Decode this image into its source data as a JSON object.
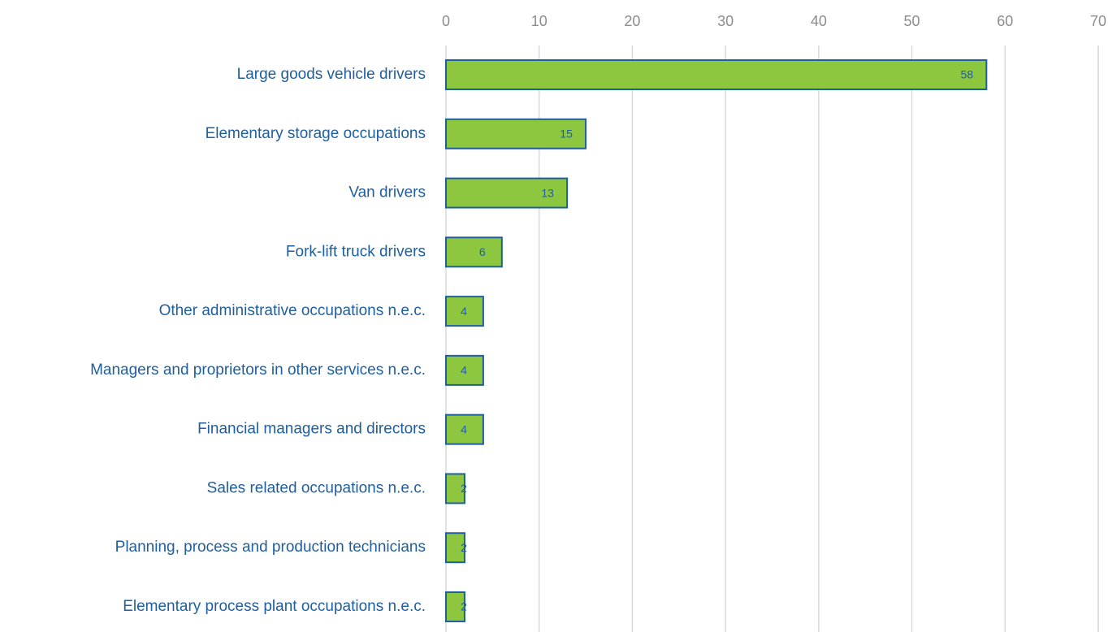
{
  "chart_data": {
    "type": "bar",
    "orientation": "horizontal",
    "categories": [
      "Large goods vehicle drivers",
      "Elementary storage occupations",
      "Van drivers",
      "Fork-lift truck drivers",
      "Other administrative occupations n.e.c.",
      "Managers and proprietors in other services n.e.c.",
      "Financial managers and directors",
      "Sales related occupations n.e.c.",
      "Planning, process and production technicians",
      "Elementary process plant occupations n.e.c."
    ],
    "values": [
      58,
      15,
      13,
      6,
      4,
      4,
      4,
      2,
      2,
      2
    ],
    "color": "#8dc63f",
    "edge_color": "#1f5fa0",
    "xlim": [
      0,
      70
    ],
    "xticks": [
      0,
      10,
      20,
      30,
      40,
      50,
      60,
      70
    ],
    "grid": true
  }
}
